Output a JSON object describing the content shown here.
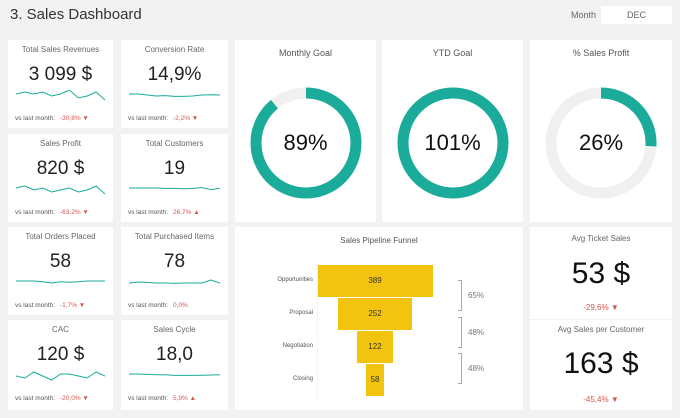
{
  "header": {
    "title": "3. Sales Dashboard",
    "month_label": "Month",
    "month_value": "DEC"
  },
  "colors": {
    "accent": "#1aab9b",
    "negative": "#d9534f",
    "funnel": "#f2c40f",
    "track": "#f0f0f0"
  },
  "kpis": [
    {
      "title": "Total Sales Revenues",
      "value": "3 099 $",
      "vs_label": "vs last month:",
      "delta": "-30,8%",
      "trend": "down",
      "sparkline": [
        5,
        6,
        5,
        6,
        4,
        5,
        7,
        3,
        4,
        6,
        2
      ]
    },
    {
      "title": "Conversion Rate",
      "value": "14,9%",
      "vs_label": "vs last month:",
      "delta": "-2,2%",
      "trend": "down",
      "sparkline": [
        5,
        5,
        4.5,
        4,
        4.2,
        3.8,
        3.8,
        4,
        4.5,
        4.6,
        4.5
      ]
    },
    {
      "title": "Sales Profit",
      "value": "820 $",
      "vs_label": "vs last month:",
      "delta": "-63,2%",
      "trend": "down",
      "sparkline": [
        5,
        6,
        4,
        5,
        3,
        4,
        5,
        3,
        4,
        6,
        2
      ]
    },
    {
      "title": "Total Customers",
      "value": "19",
      "vs_label": "vs last month:",
      "delta": "26,7%",
      "trend": "up",
      "sparkline": [
        5,
        5,
        5,
        5,
        4.8,
        4.8,
        4.6,
        4.8,
        5.2,
        4.2,
        4.8
      ]
    },
    {
      "title": "Total Orders Placed",
      "value": "58",
      "vs_label": "vs last month:",
      "delta": "-1,7%",
      "trend": "down",
      "sparkline": [
        5,
        5,
        5,
        4.6,
        4,
        4.6,
        4.4,
        4.6,
        5,
        5,
        5
      ]
    },
    {
      "title": "Total Purchased Items",
      "value": "78",
      "vs_label": "vs last month:",
      "delta": "0,0%",
      "trend": "none",
      "sparkline": [
        4,
        4.5,
        4.3,
        4,
        4,
        3.8,
        4,
        4,
        4,
        5.5,
        4
      ]
    },
    {
      "title": "CAC",
      "value": "120 $",
      "vs_label": "vs last month:",
      "delta": "-20,0%",
      "trend": "down",
      "sparkline": [
        4,
        3,
        6,
        4,
        2,
        5,
        5,
        4,
        3,
        6,
        4
      ]
    },
    {
      "title": "Sales Cycle",
      "value": "18,0",
      "vs_label": "vs last month:",
      "delta": "5,9%",
      "trend": "up",
      "sparkline": [
        5,
        5,
        4.8,
        4.6,
        4.6,
        4.3,
        4.3,
        4.3,
        4.4,
        4.5,
        4.6
      ]
    }
  ],
  "goals": [
    {
      "title": "Monthly Goal",
      "value": "89%",
      "percent": 89
    },
    {
      "title": "YTD Goal",
      "value": "101%",
      "percent": 101
    },
    {
      "title": "% Sales Profit",
      "value": "26%",
      "percent": 26
    }
  ],
  "chart_data": {
    "type": "bar",
    "title": "Sales Pipeline Funnel",
    "categories": [
      "Opportunities",
      "Proposal",
      "Negotiation",
      "Closing"
    ],
    "values": [
      389,
      252,
      122,
      58
    ],
    "conversion_rates": [
      "65%",
      "48%",
      "48%"
    ]
  },
  "right": {
    "avg_ticket": {
      "title": "Avg Ticket Sales",
      "value": "53 $",
      "delta": "-29,6%"
    },
    "avg_customer": {
      "title": "Avg Sales per Customer",
      "value": "163 $",
      "delta": "-45,4%"
    }
  }
}
